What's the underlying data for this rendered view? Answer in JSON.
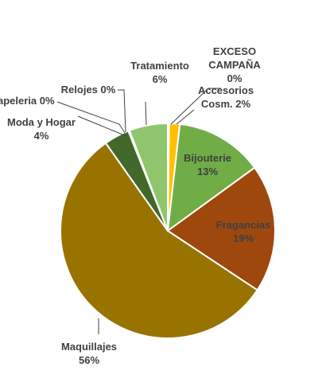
{
  "chart_data": {
    "type": "pie",
    "slices": [
      {
        "name": "EXCESO CAMPAÑA",
        "label_lines": [
          "EXCESO",
          "CAMPAÑA",
          "0%"
        ],
        "value": 0.2,
        "percent_label": "0%",
        "color": "#c00000"
      },
      {
        "name": "Accesorios Cosm.",
        "label_lines": [
          "Accesorios",
          "Cosm. 2%"
        ],
        "value": 1.6,
        "percent_label": "2%",
        "color": "#ffc000"
      },
      {
        "name": "Bijouterie",
        "label_lines": [
          "Bijouterie",
          "13%"
        ],
        "value": 13.2,
        "percent_label": "13%",
        "color": "#70ad47"
      },
      {
        "name": "Fragancias",
        "label_lines": [
          "Fragancias",
          "19%"
        ],
        "value": 19.3,
        "percent_label": "19%",
        "color": "#9e480e"
      },
      {
        "name": "Maquillajes",
        "label_lines": [
          "Maquillajes",
          "56%"
        ],
        "value": 55.9,
        "percent_label": "56%",
        "color": "#997300"
      },
      {
        "name": "Moda y Hogar",
        "label_lines": [
          "Moda y Hogar",
          "4%"
        ],
        "value": 3.8,
        "percent_label": "4%",
        "color": "#43682b"
      },
      {
        "name": "Papeleria",
        "label_lines": [
          "apeleria 0%"
        ],
        "value": 0.1,
        "percent_label": "0%",
        "color": "#7f6000"
      },
      {
        "name": "Relojes",
        "label_lines": [
          "Relojes 0%"
        ],
        "value": 0.1,
        "percent_label": "0%",
        "color": "#264478"
      },
      {
        "name": "Tratamiento",
        "label_lines": [
          "Tratamiento",
          "6%"
        ],
        "value": 5.8,
        "percent_label": "6%",
        "color": "#8fc66d"
      }
    ],
    "start_angle_deg": 0,
    "direction": "clockwise",
    "slice_border_color": "#ffffff",
    "inside_label_colors": {
      "Bijouterie": "#404040",
      "Fragancias": "#404040"
    },
    "legend": "none",
    "grid": false
  }
}
